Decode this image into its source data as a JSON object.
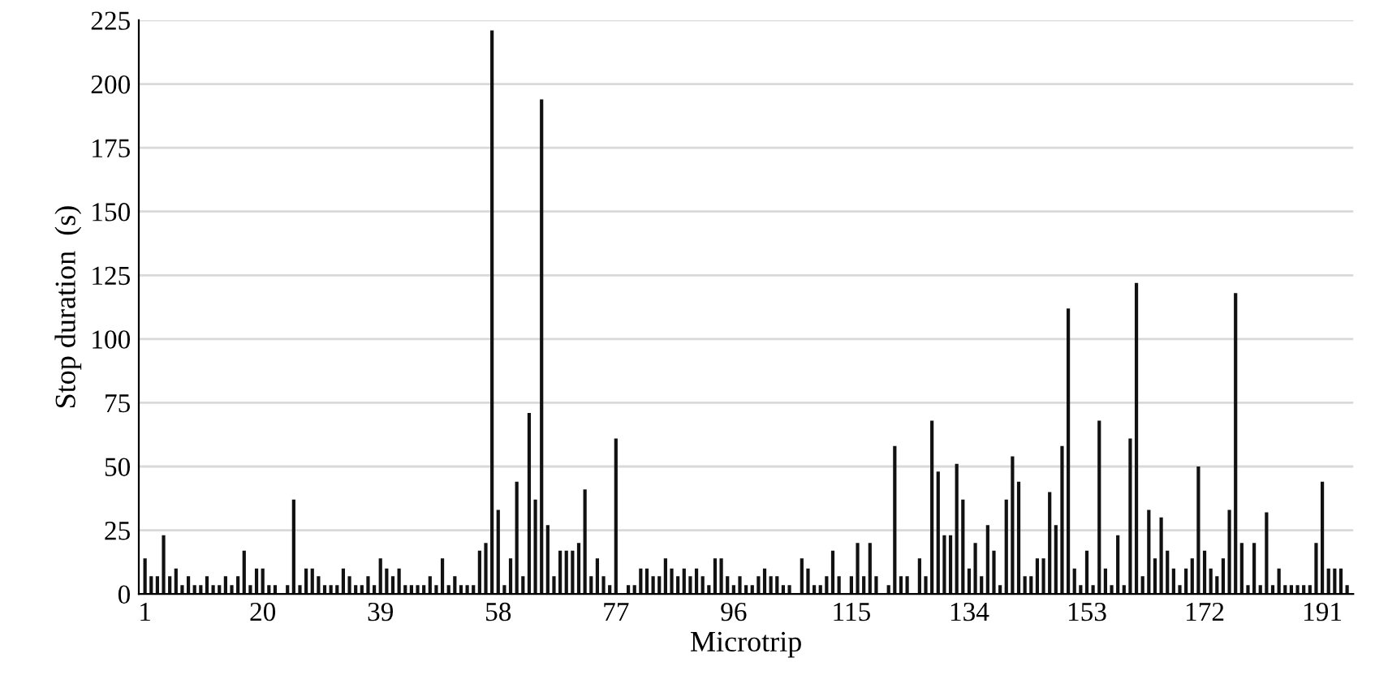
{
  "chart_data": {
    "type": "bar",
    "xlabel": "Microtrip",
    "ylabel": "Stop duration  (s)",
    "categories": [
      "1",
      null,
      null,
      null,
      null,
      null,
      null,
      null,
      null,
      null,
      null,
      null,
      null,
      null,
      null,
      null,
      null,
      null,
      null,
      "20",
      null,
      null,
      null,
      null,
      null,
      null,
      null,
      null,
      null,
      null,
      null,
      null,
      null,
      null,
      null,
      null,
      null,
      null,
      "39",
      null,
      null,
      null,
      null,
      null,
      null,
      null,
      null,
      null,
      null,
      null,
      null,
      null,
      null,
      null,
      null,
      null,
      null,
      "58",
      null,
      null,
      null,
      null,
      null,
      null,
      null,
      null,
      null,
      null,
      null,
      null,
      null,
      null,
      null,
      null,
      null,
      null,
      "77",
      null,
      null,
      null,
      null,
      null,
      null,
      null,
      null,
      null,
      null,
      null,
      null,
      null,
      null,
      null,
      null,
      null,
      null,
      "96",
      null,
      null,
      null,
      null,
      null,
      null,
      null,
      null,
      null,
      null,
      null,
      null,
      null,
      null,
      null,
      null,
      null,
      null,
      "115",
      null,
      null,
      null,
      null,
      null,
      null,
      null,
      null,
      null,
      null,
      null,
      null,
      null,
      null,
      null,
      null,
      null,
      null,
      "134",
      null,
      null,
      null,
      null,
      null,
      null,
      null,
      null,
      null,
      null,
      null,
      null,
      null,
      null,
      null,
      null,
      null,
      null,
      "153",
      null,
      null,
      null,
      null,
      null,
      null,
      null,
      null,
      null,
      null,
      null,
      null,
      null,
      null,
      null,
      null,
      null,
      null,
      "172",
      null,
      null,
      null,
      null,
      null,
      null,
      null,
      null,
      null,
      null,
      null,
      null,
      null,
      null,
      null,
      null,
      null,
      null,
      "191",
      null,
      null,
      null,
      null
    ],
    "color": "#111111",
    "values": [
      14,
      7,
      7,
      23,
      7,
      10,
      3.5,
      7,
      3.5,
      3.5,
      7,
      3.5,
      3.5,
      7,
      3.5,
      7,
      17,
      3.5,
      10,
      10,
      3.5,
      3.5,
      0,
      3.5,
      37,
      3.5,
      10,
      10,
      7,
      3.5,
      3.5,
      3.5,
      10,
      7,
      3.5,
      3.5,
      7,
      3.5,
      14,
      10,
      7,
      10,
      3.5,
      3.5,
      3.5,
      3.5,
      7,
      3.5,
      14,
      3.5,
      7,
      3.5,
      3.5,
      3.5,
      17,
      20,
      221,
      33,
      3.5,
      14,
      44,
      7,
      71,
      37,
      194,
      27,
      7,
      17,
      17,
      17,
      20,
      41,
      7,
      14,
      7,
      3.5,
      61,
      0,
      3.5,
      3.5,
      10,
      10,
      7,
      7,
      14,
      10,
      7,
      10,
      7,
      10,
      7,
      3.5,
      14,
      14,
      7,
      3.5,
      7,
      3.5,
      3.5,
      7,
      10,
      7,
      7,
      3.5,
      3.5,
      0,
      14,
      10,
      3.5,
      3.5,
      7,
      17,
      7,
      0,
      7,
      20,
      7,
      20,
      7,
      0,
      3.5,
      58,
      7,
      7,
      0,
      14,
      7,
      68,
      48,
      23,
      23,
      51,
      37,
      10,
      20,
      7,
      27,
      17,
      3.5,
      37,
      54,
      44,
      7,
      7,
      14,
      14,
      40,
      27,
      58,
      112,
      10,
      3.5,
      17,
      3.5,
      68,
      10,
      3.5,
      23,
      3.5,
      61,
      122,
      7,
      33,
      14,
      30,
      17,
      10,
      3.5,
      10,
      14,
      50,
      17,
      10,
      7,
      14,
      33,
      118,
      20,
      3.5,
      20,
      3.5,
      32,
      3.5,
      10,
      3.5,
      3.5,
      3.5,
      3.5,
      3.5,
      20,
      44,
      10,
      10,
      10,
      3.5
    ],
    "ylim": [
      0,
      225
    ],
    "yticks": [
      0,
      25,
      50,
      75,
      100,
      125,
      150,
      175,
      200,
      225
    ],
    "grid": "y"
  }
}
